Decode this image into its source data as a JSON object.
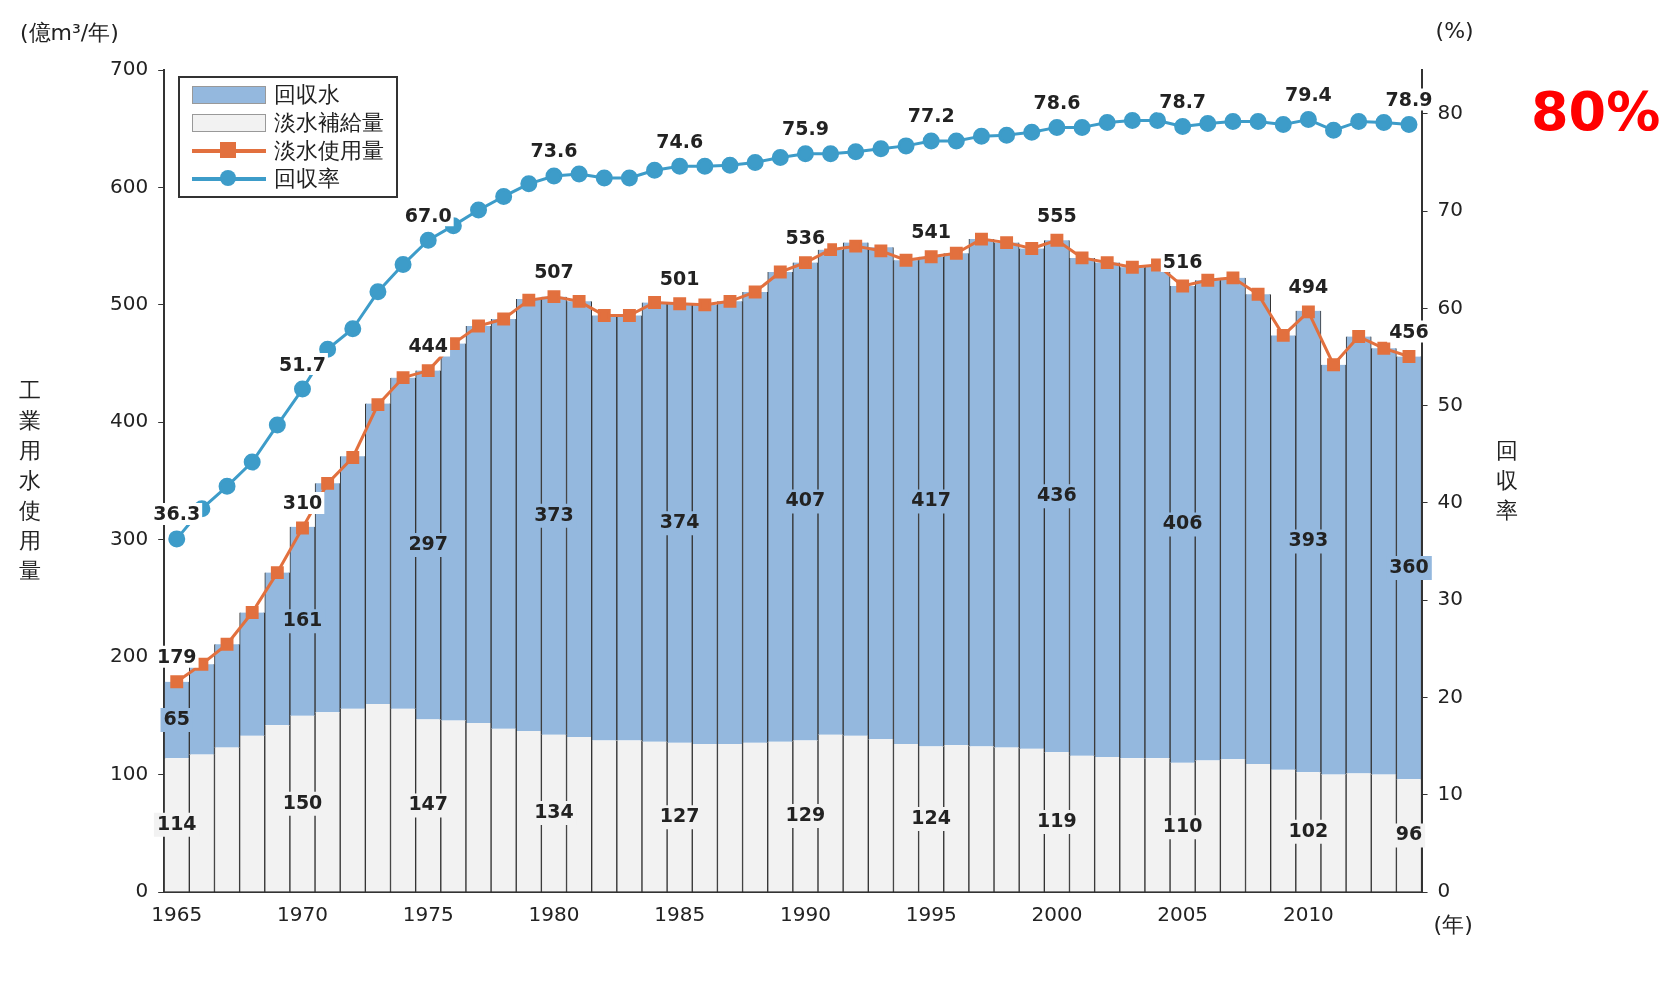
{
  "chart_data": {
    "type": "bar",
    "stacked": true,
    "xlabel": "(年)",
    "ylabel": "工業用水使用量",
    "y2label": "回収率",
    "categories": [
      "1965",
      null,
      null,
      null,
      null,
      "1970",
      null,
      null,
      null,
      null,
      "1975",
      null,
      null,
      null,
      null,
      "1980",
      null,
      null,
      null,
      null,
      "1985",
      null,
      null,
      null,
      null,
      "1990",
      null,
      null,
      null,
      null,
      "1995",
      null,
      null,
      null,
      null,
      "2000",
      null,
      null,
      null,
      null,
      "2005",
      null,
      null,
      null,
      null,
      "2010",
      null,
      null,
      null,
      null
    ],
    "ylim": [
      0,
      700
    ],
    "yticks": [
      0,
      100,
      200,
      300,
      400,
      500,
      600,
      700
    ],
    "y2lim": [
      0,
      84.5
    ],
    "y2ticks": [
      0,
      10,
      20,
      30,
      40,
      50,
      60,
      70,
      80
    ],
    "grid": false,
    "legend": "top left",
    "series": [
      {
        "name": "淡水補給量",
        "color": "#f2f2f2",
        "values": [
          114,
          117,
          123,
          133,
          142,
          150,
          153,
          156,
          160,
          156,
          147,
          146,
          144,
          139,
          137,
          134,
          132,
          129,
          129,
          128,
          127,
          126,
          126,
          127,
          128,
          129,
          134,
          133,
          130,
          126,
          124,
          125,
          124,
          123,
          122,
          119,
          116,
          115,
          114,
          114,
          110,
          112,
          113,
          109,
          104,
          102,
          100,
          101,
          100,
          96
        ],
        "value_labels": [
          "114",
          null,
          null,
          null,
          null,
          "150",
          null,
          null,
          null,
          null,
          "147",
          null,
          null,
          null,
          null,
          "134",
          null,
          null,
          null,
          null,
          "127",
          null,
          null,
          null,
          null,
          "129",
          null,
          null,
          null,
          null,
          "124",
          null,
          null,
          null,
          null,
          "119",
          null,
          null,
          null,
          null,
          "110",
          null,
          null,
          null,
          null,
          "102",
          null,
          null,
          null,
          "96"
        ]
      },
      {
        "name": "回収水",
        "color": "#94b8de",
        "values": [
          65,
          77,
          88,
          105,
          130,
          161,
          195,
          215,
          256,
          282,
          297,
          321,
          338,
          349,
          368,
          373,
          371,
          362,
          362,
          374,
          374,
          374,
          377,
          384,
          400,
          407,
          413,
          420,
          419,
          412,
          417,
          419,
          432,
          430,
          426,
          436,
          424,
          421,
          418,
          420,
          406,
          409,
          410,
          400,
          370,
          393,
          349,
          372,
          363,
          360
        ],
        "value_labels": [
          "65",
          null,
          null,
          null,
          null,
          "161",
          null,
          null,
          null,
          null,
          "297",
          null,
          null,
          null,
          null,
          "373",
          null,
          null,
          null,
          null,
          "374",
          null,
          null,
          null,
          null,
          "407",
          null,
          null,
          null,
          null,
          "417",
          null,
          null,
          null,
          null,
          "436",
          null,
          null,
          null,
          null,
          "406",
          null,
          null,
          null,
          null,
          "393",
          null,
          null,
          null,
          "360"
        ]
      },
      {
        "name": "淡水使用量",
        "type": "line",
        "color": "#e2703e",
        "marker": "square",
        "line_style": "solid",
        "values": [
          179,
          194,
          211,
          238,
          272,
          310,
          348,
          370,
          415,
          438,
          444,
          467,
          482,
          488,
          504,
          507,
          503,
          491,
          491,
          502,
          501,
          500,
          503,
          511,
          528,
          536,
          547,
          550,
          546,
          538,
          541,
          544,
          556,
          553,
          548,
          555,
          540,
          536,
          532,
          534,
          516,
          521,
          523,
          509,
          474,
          494,
          449,
          473,
          463,
          456
        ],
        "value_labels": [
          "179",
          null,
          null,
          null,
          null,
          "310",
          null,
          null,
          null,
          null,
          "444",
          null,
          null,
          null,
          null,
          "507",
          null,
          null,
          null,
          null,
          "501",
          null,
          null,
          null,
          null,
          "536",
          null,
          null,
          null,
          null,
          "541",
          null,
          null,
          null,
          null,
          "555",
          null,
          null,
          null,
          null,
          "516",
          null,
          null,
          null,
          null,
          "494",
          null,
          null,
          null,
          "456"
        ]
      },
      {
        "name": "回収率",
        "type": "line",
        "axis": "y2",
        "color": "#3d9cc9",
        "marker": "circle",
        "line_style": "solid",
        "values": [
          36.3,
          39.4,
          41.7,
          44.2,
          48.0,
          51.7,
          55.8,
          57.9,
          61.7,
          64.5,
          67.0,
          68.5,
          70.1,
          71.5,
          72.8,
          73.6,
          73.8,
          73.4,
          73.4,
          74.2,
          74.6,
          74.6,
          74.7,
          75.0,
          75.5,
          75.9,
          75.9,
          76.1,
          76.4,
          76.7,
          77.2,
          77.2,
          77.7,
          77.8,
          78.1,
          78.6,
          78.6,
          79.1,
          79.3,
          79.3,
          78.7,
          79.0,
          79.2,
          79.2,
          78.9,
          79.4,
          78.3,
          79.2,
          79.1,
          78.9
        ],
        "value_labels": [
          "36.3",
          null,
          null,
          null,
          null,
          "51.7",
          null,
          null,
          null,
          null,
          "67.0",
          null,
          null,
          null,
          null,
          "73.6",
          null,
          null,
          null,
          null,
          "74.6",
          null,
          null,
          null,
          null,
          "75.9",
          null,
          null,
          null,
          null,
          "77.2",
          null,
          null,
          null,
          null,
          "78.6",
          null,
          null,
          null,
          null,
          "78.7",
          null,
          null,
          null,
          null,
          "79.4",
          null,
          null,
          null,
          "78.9"
        ]
      }
    ],
    "annotations": [
      "(億m³/年)",
      "(%)",
      "80%"
    ]
  }
}
